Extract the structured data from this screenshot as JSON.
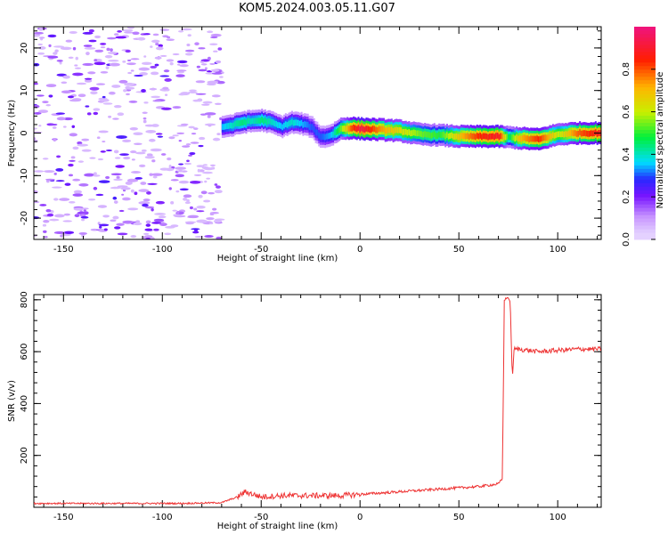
{
  "title": "KOM5.2024.003.05.11.G07",
  "chart_data": [
    {
      "type": "heatmap",
      "xlabel": "Height of straight line (km)",
      "ylabel": "Frequency (Hz)",
      "xlim": [
        -165,
        122
      ],
      "ylim": [
        -25,
        25
      ],
      "xticks": [
        -150,
        -100,
        -50,
        0,
        50,
        100
      ],
      "yticks": [
        -20,
        -10,
        0,
        10,
        20
      ],
      "colorbar": {
        "label": "Normalized spectral amplitude",
        "range": [
          0.0,
          1.0
        ],
        "ticks": [
          "0.0",
          "0.2",
          "0.4",
          "0.6",
          "0.8"
        ]
      },
      "noise_region_x": [
        -165,
        -70
      ],
      "ridge": {
        "x": [
          -70,
          -65,
          -60,
          -55,
          -50,
          -45,
          -40,
          -35,
          -30,
          -25,
          -20,
          -15,
          -10,
          -5,
          0,
          10,
          20,
          30,
          40,
          50,
          60,
          70,
          75,
          80,
          90,
          100,
          110,
          122
        ],
        "freq_hz": [
          1.5,
          1.8,
          2.5,
          2.8,
          3.0,
          2.5,
          1.5,
          2.5,
          2.2,
          1.5,
          -1.0,
          -0.5,
          1.0,
          1.2,
          1.0,
          0.8,
          0.5,
          -0.3,
          -0.5,
          -0.8,
          -0.8,
          -0.8,
          -1.0,
          -1.2,
          -1.5,
          -0.3,
          0.0,
          0.0
        ],
        "amplitude": [
          0.35,
          0.4,
          0.45,
          0.4,
          0.45,
          0.4,
          0.35,
          0.4,
          0.35,
          0.3,
          0.3,
          0.35,
          0.55,
          0.8,
          0.95,
          0.75,
          0.65,
          0.55,
          0.5,
          0.7,
          0.85,
          0.9,
          0.45,
          0.7,
          0.85,
          0.6,
          0.8,
          0.9
        ]
      }
    },
    {
      "type": "line",
      "xlabel": "Height of straight line (km)",
      "ylabel": "SNR (v/v)",
      "xlim": [
        -165,
        122
      ],
      "ylim": [
        0,
        820
      ],
      "xticks": [
        -150,
        -100,
        -50,
        0,
        50,
        100
      ],
      "yticks": [
        200,
        400,
        600,
        800
      ],
      "series": [
        {
          "color": "#ee3333",
          "x": [
            -165,
            -150,
            -130,
            -110,
            -90,
            -70,
            -62,
            -58,
            -50,
            -40,
            -30,
            -20,
            -10,
            0,
            10,
            20,
            30,
            40,
            50,
            60,
            70,
            72,
            73,
            75,
            76,
            77,
            78,
            80,
            90,
            100,
            110,
            122
          ],
          "y": [
            15,
            15,
            15,
            15,
            15,
            18,
            40,
            60,
            40,
            45,
            45,
            45,
            45,
            50,
            55,
            60,
            65,
            70,
            75,
            80,
            90,
            110,
            800,
            810,
            790,
            500,
            610,
            610,
            600,
            605,
            610,
            610
          ]
        }
      ]
    }
  ]
}
